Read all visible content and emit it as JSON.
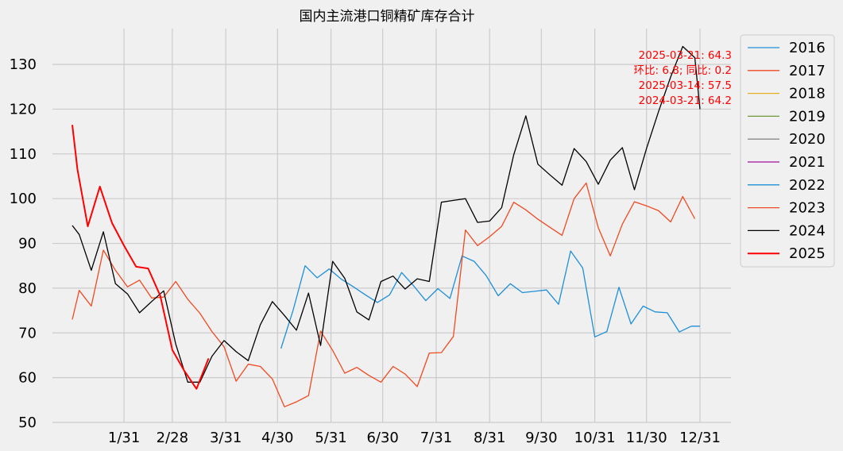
{
  "chart_data": {
    "type": "line",
    "title": "国内主流港口铜精矿库存合计",
    "xlabel": "",
    "ylabel": "",
    "x_range": [
      "2025-01-01",
      "2025-12-31"
    ],
    "ylim": [
      50,
      138
    ],
    "x_ticks": [
      {
        "date": "2025-01-31",
        "label": "1/31"
      },
      {
        "date": "2025-02-28",
        "label": "2/28"
      },
      {
        "date": "2025-03-31",
        "label": "3/31"
      },
      {
        "date": "2025-04-30",
        "label": "4/30"
      },
      {
        "date": "2025-05-31",
        "label": "5/31"
      },
      {
        "date": "2025-06-30",
        "label": "6/30"
      },
      {
        "date": "2025-07-31",
        "label": "7/31"
      },
      {
        "date": "2025-08-31",
        "label": "8/31"
      },
      {
        "date": "2025-09-30",
        "label": "9/30"
      },
      {
        "date": "2025-10-31",
        "label": "10/31"
      },
      {
        "date": "2025-11-30",
        "label": "11/30"
      },
      {
        "date": "2025-12-31",
        "label": "12/31"
      }
    ],
    "y_ticks": [
      50,
      60,
      70,
      80,
      90,
      100,
      110,
      120,
      130
    ],
    "grid": true,
    "legend_position": "outside-right",
    "series": [
      {
        "name": "2016",
        "color": "#1f8fd8",
        "width": 1.3,
        "x": [],
        "y": []
      },
      {
        "name": "2017",
        "color": "#f04a22",
        "width": 1.3,
        "x": [],
        "y": []
      },
      {
        "name": "2018",
        "color": "#e8b020",
        "width": 1.3,
        "x": [],
        "y": []
      },
      {
        "name": "2019",
        "color": "#6e9a3a",
        "width": 1.3,
        "x": [],
        "y": []
      },
      {
        "name": "2020",
        "color": "#8a8a8a",
        "width": 1.3,
        "x": [],
        "y": []
      },
      {
        "name": "2021",
        "color": "#a0109a",
        "width": 1.3,
        "x": [],
        "y": []
      },
      {
        "name": "2022",
        "color": "#1f8fd8",
        "width": 1.3,
        "x": [
          "2025-05-02",
          "2025-05-09",
          "2025-05-16",
          "2025-05-23",
          "2025-05-30",
          "2025-06-06",
          "2025-06-13",
          "2025-06-20",
          "2025-06-27",
          "2025-07-04",
          "2025-07-11",
          "2025-07-18",
          "2025-07-25",
          "2025-08-01",
          "2025-08-08",
          "2025-08-15",
          "2025-08-22",
          "2025-08-29",
          "2025-09-05",
          "2025-09-12",
          "2025-09-19",
          "2025-09-26",
          "2025-10-03",
          "2025-10-10",
          "2025-10-17",
          "2025-10-24",
          "2025-10-31",
          "2025-11-07",
          "2025-11-14",
          "2025-11-21",
          "2025-11-28",
          "2025-12-05",
          "2025-12-12",
          "2025-12-19",
          "2025-12-26",
          "2025-12-31"
        ],
        "y": [
          66.5,
          75,
          85,
          82.3,
          84.3,
          82,
          80.3,
          78.5,
          76.8,
          78.5,
          83.5,
          80.5,
          77.2,
          79.9,
          77.7,
          87.2,
          86,
          82.8,
          78.3,
          81,
          79,
          79.3,
          79.6,
          76.4,
          88.3,
          84.5,
          69.1,
          70.3,
          80.2,
          72,
          76,
          74.7,
          74.5,
          70.2,
          71.5,
          71.5
        ]
      },
      {
        "name": "2023",
        "color": "#f04a22",
        "width": 1.3,
        "x": [
          "2025-01-01",
          "2025-01-05",
          "2025-01-12",
          "2025-01-19",
          "2025-01-26",
          "2025-02-02",
          "2025-02-09",
          "2025-02-16",
          "2025-02-23",
          "2025-03-02",
          "2025-03-09",
          "2025-03-16",
          "2025-03-23",
          "2025-03-30",
          "2025-04-06",
          "2025-04-13",
          "2025-04-20",
          "2025-04-27",
          "2025-05-04",
          "2025-05-11",
          "2025-05-18",
          "2025-05-25",
          "2025-06-01",
          "2025-06-08",
          "2025-06-15",
          "2025-06-22",
          "2025-06-29",
          "2025-07-06",
          "2025-07-13",
          "2025-07-20",
          "2025-07-27",
          "2025-08-03",
          "2025-08-10",
          "2025-08-17",
          "2025-08-24",
          "2025-08-31",
          "2025-09-07",
          "2025-09-14",
          "2025-09-21",
          "2025-09-28",
          "2025-10-05",
          "2025-10-12",
          "2025-10-19",
          "2025-10-26",
          "2025-11-02",
          "2025-11-09",
          "2025-11-16",
          "2025-11-23",
          "2025-11-30",
          "2025-12-07",
          "2025-12-14",
          "2025-12-21",
          "2025-12-28"
        ],
        "y": [
          73,
          79.5,
          76,
          88.5,
          84,
          80.3,
          81.8,
          77.8,
          78,
          81.5,
          77.5,
          74.4,
          70.3,
          66.9,
          59.2,
          63,
          62.5,
          59.7,
          53.5,
          54.6,
          56,
          70.4,
          66.1,
          61,
          62.3,
          60.5,
          59,
          62.5,
          60.8,
          58,
          65.5,
          65.6,
          69.2,
          93,
          89.5,
          91.5,
          93.8,
          99.2,
          97.5,
          95.4,
          93.6,
          91.8,
          100,
          103.5,
          93.5,
          87.2,
          94.3,
          99.3,
          98.4,
          97.3,
          94.8,
          100.5,
          95.5
        ]
      },
      {
        "name": "2024",
        "color": "#000000",
        "width": 1.3,
        "x": [
          "2025-01-01",
          "2025-01-05",
          "2025-01-12",
          "2025-01-19",
          "2025-01-26",
          "2025-02-02",
          "2025-02-09",
          "2025-02-16",
          "2025-02-23",
          "2025-03-02",
          "2025-03-09",
          "2025-03-16",
          "2025-03-23",
          "2025-03-30",
          "2025-04-06",
          "2025-04-13",
          "2025-04-20",
          "2025-04-27",
          "2025-05-04",
          "2025-05-11",
          "2025-05-18",
          "2025-05-25",
          "2025-06-01",
          "2025-06-08",
          "2025-06-15",
          "2025-06-22",
          "2025-06-29",
          "2025-07-06",
          "2025-07-13",
          "2025-07-20",
          "2025-07-27",
          "2025-08-03",
          "2025-08-10",
          "2025-08-17",
          "2025-08-24",
          "2025-08-31",
          "2025-09-07",
          "2025-09-14",
          "2025-09-21",
          "2025-09-28",
          "2025-10-05",
          "2025-10-12",
          "2025-10-19",
          "2025-10-26",
          "2025-11-02",
          "2025-11-09",
          "2025-11-16",
          "2025-11-23",
          "2025-11-30",
          "2025-12-07",
          "2025-12-14",
          "2025-12-21",
          "2025-12-28",
          "2025-12-31"
        ],
        "y": [
          94,
          92,
          84,
          92.6,
          81,
          78.7,
          74.5,
          77,
          79.4,
          67.5,
          59,
          59,
          64.8,
          68.3,
          65.8,
          63.8,
          71.8,
          77,
          73.9,
          70.6,
          78.9,
          67.2,
          86,
          82.2,
          74.7,
          72.9,
          81.5,
          82.7,
          79.8,
          82.1,
          81.5,
          99.2,
          99.6,
          100,
          94.7,
          95,
          98,
          109.8,
          118.5,
          107.7,
          105.3,
          103,
          111.2,
          108.3,
          103.2,
          108.6,
          111.4,
          102,
          111.2,
          119.5,
          127.2,
          134,
          131.5,
          120
        ]
      },
      {
        "name": "2025",
        "color": "#ff0000",
        "width": 2,
        "x": [
          "2025-01-01",
          "2025-01-04",
          "2025-01-10",
          "2025-01-17",
          "2025-01-24",
          "2025-01-31",
          "2025-02-07",
          "2025-02-14",
          "2025-02-21",
          "2025-02-28",
          "2025-03-07",
          "2025-03-14",
          "2025-03-21"
        ],
        "y": [
          116.5,
          106.5,
          93.8,
          102.7,
          94.6,
          89.5,
          84.8,
          84.4,
          78.3,
          66.2,
          61.5,
          57.5,
          64.3
        ]
      }
    ],
    "annotations": [
      "2025-03-21: 64.3",
      "环比: 6.8; 同比: 0.2",
      "2025-03-14: 57.5",
      "2024-03-21: 64.2"
    ]
  }
}
